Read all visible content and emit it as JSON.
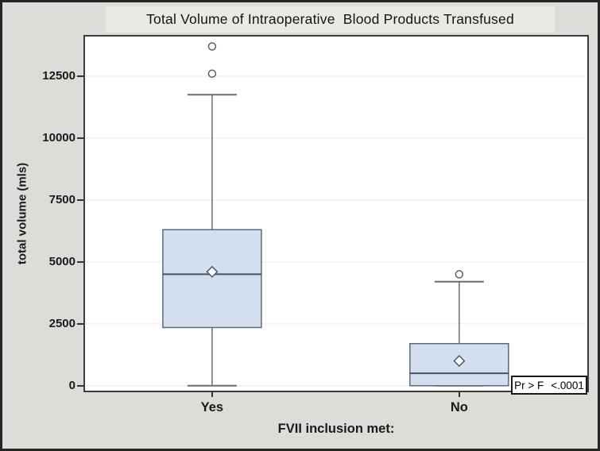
{
  "window": {
    "title": "Total Volume of Intraoperative  Blood Products Transfused"
  },
  "annotation": {
    "label": "Pr > F",
    "value": "<.0001"
  },
  "chart_data": {
    "type": "boxplot",
    "title": "Total Volume of Intraoperative  Blood Products Transfused",
    "xlabel": "FVII inclusion met:",
    "ylabel": "total volume (mls)",
    "categories": [
      "Yes",
      "No"
    ],
    "yticks": [
      0,
      2500,
      5000,
      7500,
      10000,
      12500
    ],
    "ylim": [
      -200,
      14100
    ],
    "grid": "horizontal",
    "legend": "none",
    "annotation": "Pr > F   <.0001",
    "series": [
      {
        "category": "Yes",
        "whisker_low": 0,
        "q1": 2350,
        "median": 4500,
        "mean": 4600,
        "q3": 6300,
        "whisker_high": 11750,
        "outliers": [
          12600,
          13700
        ]
      },
      {
        "category": "No",
        "whisker_low": 0,
        "q1": 0,
        "median": 500,
        "mean": 1000,
        "q3": 1700,
        "whisker_high": 4200,
        "outliers": [
          4500
        ]
      }
    ],
    "colors": {
      "box_fill": "#d3dfee",
      "box_border": "#5a6a7a",
      "median_line": "#44546a",
      "whisker": "#6b6b6b",
      "outlier_stroke": "#5f5f5f",
      "mean_marker_stroke": "#4c5c6e",
      "gridline": "#ededed",
      "plot_border": "#3b3b3b",
      "frame_background": "#dcdcd8",
      "title_band_background": "#ebe9e4",
      "annotation_border": "#1a1a1a"
    }
  }
}
